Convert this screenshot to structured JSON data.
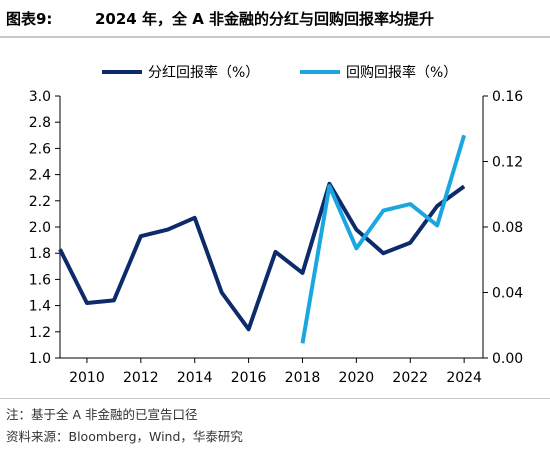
{
  "figure_label": "图表9:",
  "title": "2024 年，全 A 非金融的分红与回购回报率均提升",
  "notes": {
    "note": "注：基于全 A 非金融的已宣告口径",
    "source": "资料来源：Bloomberg，Wind，华泰研究"
  },
  "colors": {
    "dividend": "#0d2a6b",
    "buyback": "#1aa7e0",
    "axis": "#000000"
  },
  "chart_data": {
    "type": "line",
    "x": [
      2009,
      2010,
      2011,
      2012,
      2013,
      2014,
      2015,
      2016,
      2017,
      2018,
      2019,
      2020,
      2021,
      2022,
      2023,
      2024
    ],
    "x_ticks": [
      "2010",
      "2012",
      "2014",
      "2016",
      "2018",
      "2020",
      "2022",
      "2024"
    ],
    "xlim": [
      2009,
      2024.7
    ],
    "y_left": {
      "lim": [
        1.0,
        3.0
      ],
      "ticks": [
        "1.0",
        "1.2",
        "1.4",
        "1.6",
        "1.8",
        "2.0",
        "2.2",
        "2.4",
        "2.6",
        "2.8",
        "3.0"
      ]
    },
    "y_right": {
      "lim": [
        0.0,
        0.16
      ],
      "ticks": [
        "0.00",
        "0.04",
        "0.08",
        "0.12",
        "0.16"
      ]
    },
    "legend_position": "top",
    "grid": false,
    "series": [
      {
        "name": "分红回报率（%）",
        "axis": "left",
        "color": "#0d2a6b",
        "x": [
          2009,
          2010,
          2011,
          2012,
          2013,
          2014,
          2015,
          2016,
          2017,
          2018,
          2019,
          2020,
          2021,
          2022,
          2023,
          2024
        ],
        "values": [
          1.83,
          1.42,
          1.44,
          1.93,
          1.98,
          2.07,
          1.5,
          1.22,
          1.81,
          1.65,
          2.33,
          1.98,
          1.8,
          1.88,
          2.16,
          2.31
        ]
      },
      {
        "name": "回购回报率（%）",
        "axis": "right",
        "color": "#1aa7e0",
        "x": [
          2018,
          2019,
          2020,
          2021,
          2022,
          2023,
          2024
        ],
        "values": [
          0.009,
          0.105,
          0.067,
          0.09,
          0.094,
          0.081,
          0.136
        ]
      }
    ]
  }
}
